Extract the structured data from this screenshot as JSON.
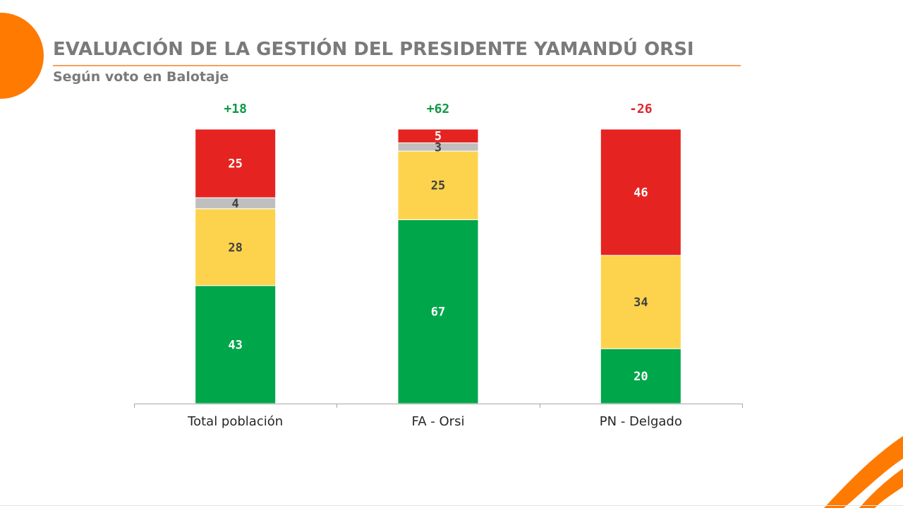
{
  "header": {
    "title": "EVALUACIÓN DE LA GESTIÓN DEL PRESIDENTE YAMANDÚ ORSI",
    "subtitle": "Según voto en Balotaje"
  },
  "colors": {
    "accent": "#ff7a00",
    "green": "#00a64a",
    "yellow": "#fdd34d",
    "gray": "#bfbfbf",
    "red": "#e52421",
    "net_positive": "#0d9a44",
    "net_negative": "#e0242b"
  },
  "chart_data": {
    "type": "bar",
    "stacked": true,
    "categories": [
      "Total población",
      "FA - Orsi",
      "PN - Delgado"
    ],
    "series": [
      {
        "values": [
          43,
          67,
          20
        ],
        "color": "#00a64a"
      },
      {
        "values": [
          28,
          25,
          34
        ],
        "color": "#fdd34d"
      },
      {
        "values": [
          4,
          3,
          0
        ],
        "color": "#bfbfbf"
      },
      {
        "values": [
          25,
          5,
          46
        ],
        "color": "#e52421"
      }
    ],
    "net_labels": [
      "+18",
      "+62",
      "-26"
    ],
    "ylim": [
      0,
      100
    ],
    "grid": false,
    "legend": "none"
  }
}
